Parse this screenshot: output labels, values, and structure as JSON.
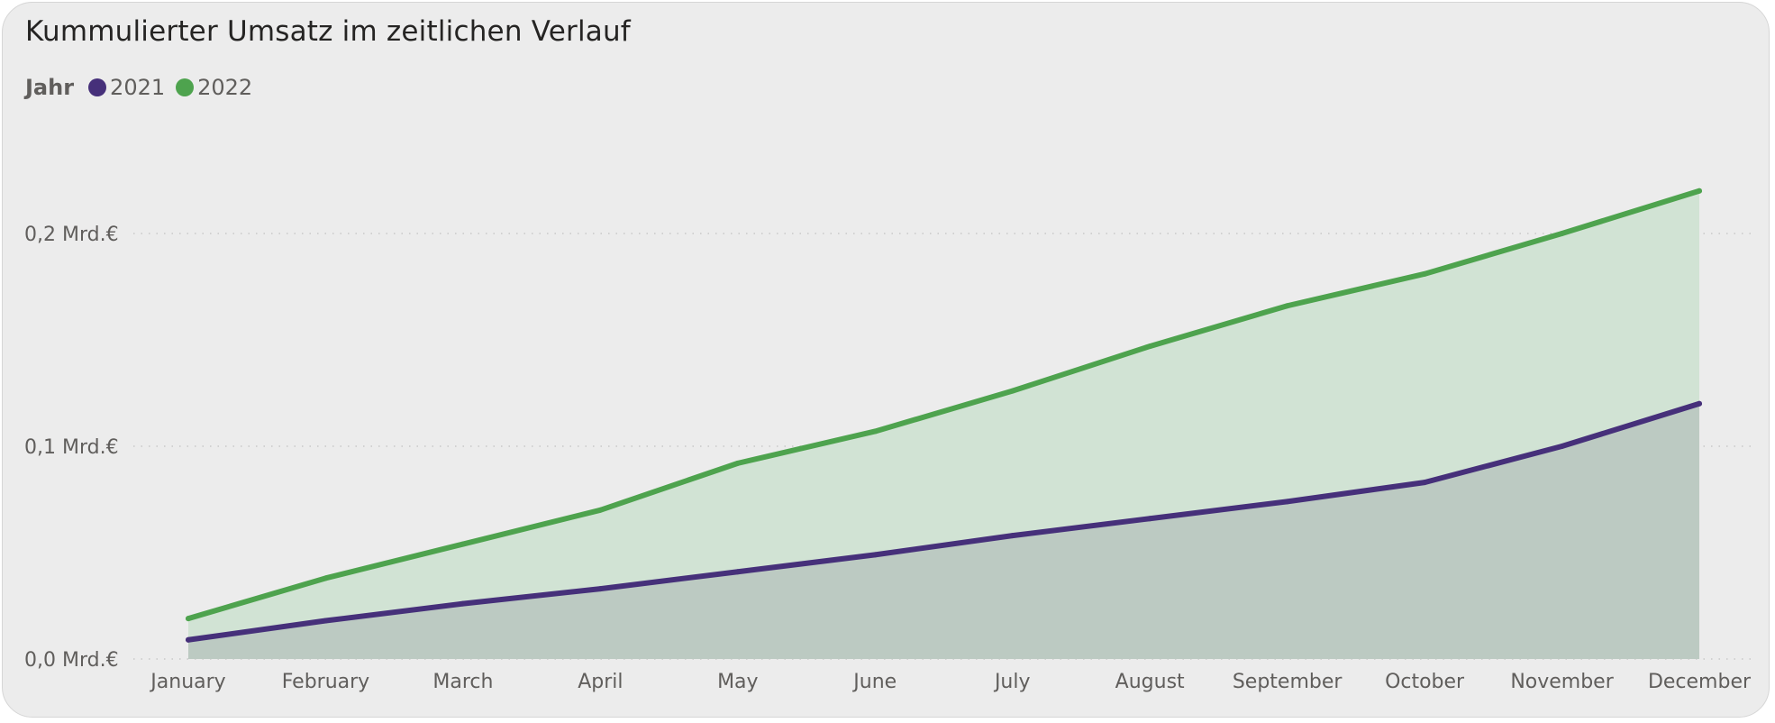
{
  "chart_data": {
    "type": "area",
    "title": "Kummulierter Umsatz im zeitlichen Verlauf",
    "legend_title": "Jahr",
    "legend_position": "top-left",
    "categories": [
      "January",
      "February",
      "March",
      "April",
      "May",
      "June",
      "July",
      "August",
      "September",
      "October",
      "November",
      "December"
    ],
    "series": [
      {
        "name": "2021",
        "color": "#46307a",
        "fill": "#bccac2",
        "values": [
          0.009,
          0.018,
          0.026,
          0.033,
          0.041,
          0.049,
          0.058,
          0.066,
          0.074,
          0.083,
          0.1,
          0.12
        ]
      },
      {
        "name": "2022",
        "color": "#4ea34e",
        "fill": "#d1e3d4",
        "values": [
          0.019,
          0.038,
          0.054,
          0.07,
          0.092,
          0.107,
          0.126,
          0.147,
          0.166,
          0.181,
          0.2,
          0.22
        ]
      }
    ],
    "y_ticks": [
      {
        "value": 0.0,
        "label": "0,0 Mrd.€"
      },
      {
        "value": 0.1,
        "label": "0,1 Mrd.€"
      },
      {
        "value": 0.2,
        "label": "0,2 Mrd.€"
      }
    ],
    "ylim": [
      0,
      0.235
    ],
    "grid": "horizontal-dotted",
    "xlabel": "",
    "ylabel": ""
  }
}
